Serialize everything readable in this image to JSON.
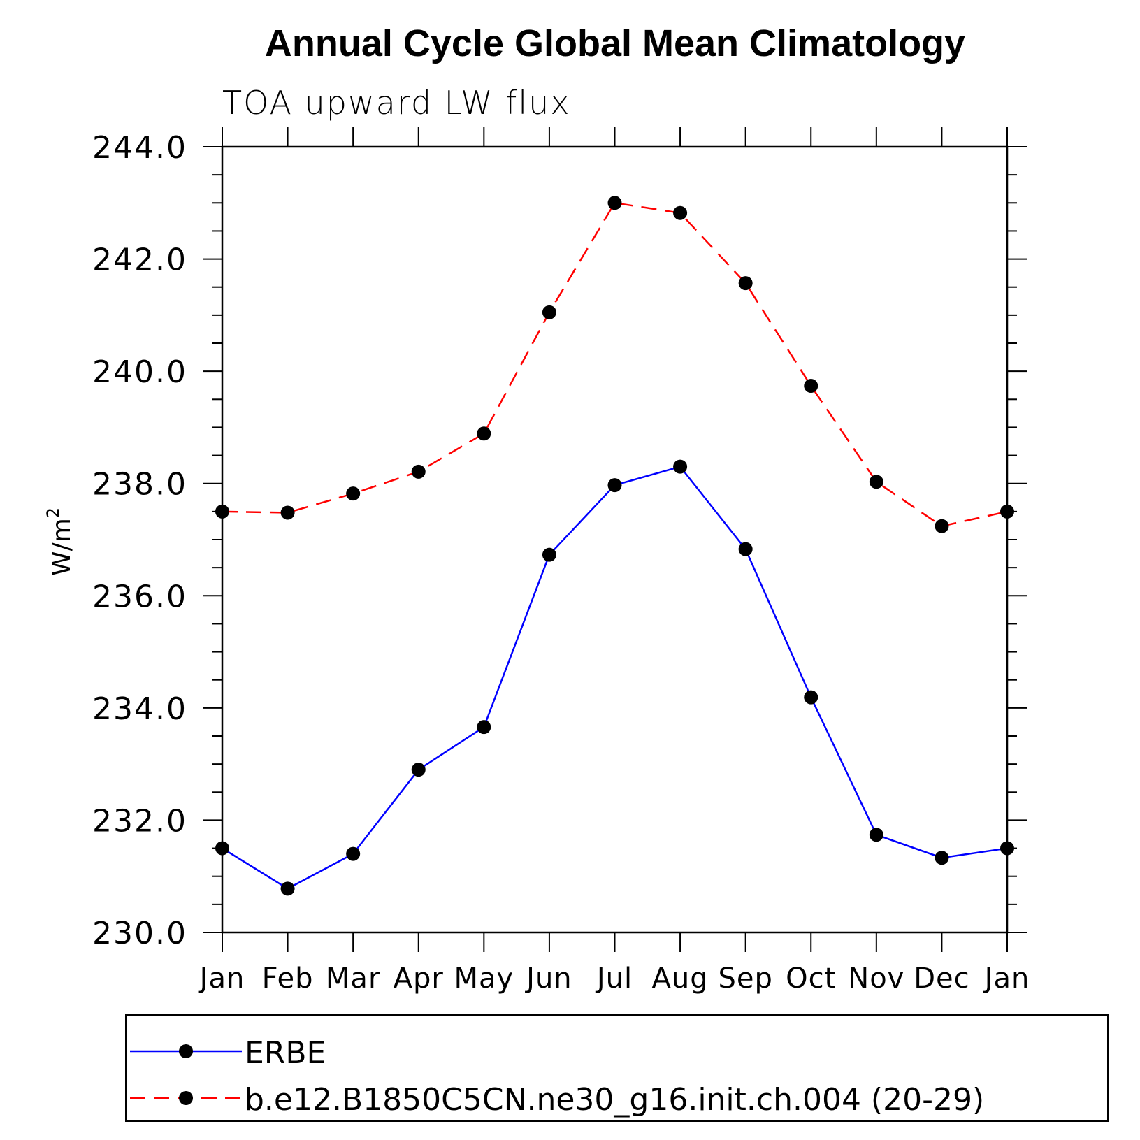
{
  "chart_data": {
    "type": "line",
    "title": "Annual Cycle Global Mean Climatology",
    "subtitle": "TOA upward LW flux",
    "ylabel": "W/m",
    "ylabel_sup": "2",
    "ylim": [
      230.0,
      244.0
    ],
    "y_ticks": [
      "230.0",
      "232.0",
      "234.0",
      "236.0",
      "238.0",
      "240.0",
      "242.0",
      "244.0"
    ],
    "categories": [
      "Jan",
      "Feb",
      "Mar",
      "Apr",
      "May",
      "Jun",
      "Jul",
      "Aug",
      "Sep",
      "Oct",
      "Nov",
      "Dec",
      "Jan"
    ],
    "series": [
      {
        "name": "ERBE",
        "color": "#0000ff",
        "line_style": "solid",
        "marker": "filled-circle",
        "values": [
          231.5,
          230.78,
          231.4,
          232.9,
          233.66,
          236.73,
          237.97,
          238.3,
          236.83,
          234.19,
          231.74,
          231.33,
          231.5
        ]
      },
      {
        "name": "b.e12.B1850C5CN.ne30_g16.init.ch.004 (20-29)",
        "color": "#ff0000",
        "line_style": "dashed",
        "marker": "filled-circle",
        "values": [
          237.5,
          237.48,
          237.82,
          238.21,
          238.89,
          241.05,
          243.0,
          242.82,
          241.57,
          239.74,
          238.03,
          237.24,
          237.5
        ]
      }
    ],
    "legend_position": "bottom"
  }
}
